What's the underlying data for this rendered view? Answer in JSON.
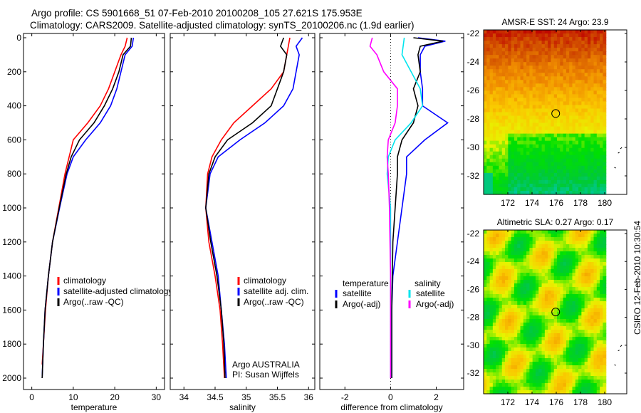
{
  "title_line1": "Argo profile: CS 5901668_51 07-Feb-2010 20100208_105 27.621S 175.953E",
  "title_line2": "Climatology: CARS2009. Satellite-adjusted climatology: synTS_20100206.nc (1.9d earlier)",
  "footer": "CSIRO 12-Feb-2010 10:30:54",
  "chart_data": [
    {
      "type": "line",
      "xlabel": "temperature",
      "ylabel": "",
      "xlim": [
        -2,
        32
      ],
      "ylim": [
        2050,
        0
      ],
      "xticks": [
        "0",
        "10",
        "20",
        "30"
      ],
      "yticks": [
        "0",
        "200",
        "400",
        "600",
        "800",
        "1000",
        "1200",
        "1400",
        "1600",
        "1800",
        "2000"
      ],
      "legend": [
        "climatology",
        "satellite-adjusted climatology",
        "Argo(..raw -QC)"
      ],
      "series": [
        {
          "name": "climatology",
          "color": "#ff0000",
          "depth": [
            0,
            50,
            100,
            200,
            300,
            400,
            500,
            600,
            700,
            800,
            1000,
            1200,
            1400,
            1600,
            1800,
            1920
          ],
          "values": [
            23,
            22.5,
            21.5,
            20,
            18.5,
            16.5,
            13.5,
            10,
            9,
            8,
            6.5,
            5,
            4,
            3.3,
            2.8,
            2.5
          ]
        },
        {
          "name": "satellite-adjusted climatology",
          "color": "#0000ff",
          "depth": [
            0,
            50,
            100,
            200,
            300,
            400,
            500,
            600,
            700,
            800,
            1000,
            1200,
            1400,
            1600,
            1800,
            2000
          ],
          "values": [
            24.5,
            24.2,
            22.5,
            21.5,
            20.5,
            19,
            16.5,
            13,
            10,
            8.5,
            6.7,
            5,
            4,
            3.2,
            2.8,
            2.5
          ]
        },
        {
          "name": "Argo(..raw -QC)",
          "color": "#000000",
          "depth": [
            0,
            50,
            100,
            200,
            300,
            400,
            500,
            600,
            700,
            800,
            1000,
            1200,
            1400,
            1600,
            1800,
            2000
          ],
          "values": [
            24,
            23.8,
            22,
            21,
            19.5,
            17.5,
            15,
            11.5,
            9.5,
            8.3,
            6.6,
            5,
            4,
            3.2,
            2.8,
            2.5
          ]
        }
      ]
    },
    {
      "type": "line",
      "xlabel": "salinity",
      "xlim": [
        33.78,
        36.1
      ],
      "ylim": [
        2050,
        0
      ],
      "xticks": [
        "34",
        "34.5",
        "35",
        "35.5",
        "36"
      ],
      "legend": [
        "climatology",
        "satellite adj. clim.",
        "Argo(..raw -QC)"
      ],
      "annotation": [
        "Argo AUSTRALIA",
        "PI: Susan Wijffels"
      ],
      "series": [
        {
          "name": "climatology",
          "color": "#ff0000",
          "depth": [
            0,
            100,
            200,
            300,
            400,
            500,
            600,
            700,
            800,
            1000,
            1200,
            1400,
            1600,
            1800,
            2000
          ],
          "values": [
            35.7,
            35.65,
            35.6,
            35.4,
            35.1,
            34.8,
            34.6,
            34.45,
            34.38,
            34.35,
            34.4,
            34.5,
            34.58,
            34.62,
            34.65
          ]
        },
        {
          "name": "satellite adj. clim.",
          "color": "#0000ff",
          "depth": [
            0,
            50,
            100,
            200,
            300,
            400,
            500,
            600,
            700,
            800,
            1000,
            1200,
            1400,
            1600,
            1800,
            2000
          ],
          "values": [
            35.9,
            35.8,
            35.85,
            35.8,
            35.75,
            35.6,
            35.3,
            34.9,
            34.55,
            34.42,
            34.35,
            34.45,
            34.55,
            34.6,
            34.65,
            34.68
          ]
        },
        {
          "name": "Argo(..raw -QC)",
          "color": "#000000",
          "depth": [
            0,
            50,
            100,
            200,
            300,
            400,
            500,
            600,
            700,
            800,
            1000,
            1200,
            1400,
            1600,
            1800,
            2000
          ],
          "values": [
            35.6,
            35.55,
            35.65,
            35.6,
            35.5,
            35.4,
            35.1,
            34.7,
            34.5,
            34.4,
            34.35,
            34.43,
            34.53,
            34.6,
            34.64,
            34.66
          ]
        }
      ]
    },
    {
      "type": "line",
      "xlabel": "difference from climatology",
      "xlim": [
        -3.1,
        3.2
      ],
      "ylim": [
        2050,
        0
      ],
      "xticks": [
        "-2",
        "0",
        "2"
      ],
      "legend_headers": [
        "temperature",
        "salinity"
      ],
      "legend": [
        "satellite",
        "Argo(-adj)",
        "satellite",
        "Argo(-adj)"
      ],
      "series": [
        {
          "name": "temperature satellite",
          "color": "#0000ff",
          "depth": [
            0,
            20,
            50,
            100,
            200,
            300,
            400,
            500,
            600,
            700,
            800,
            1000,
            1200,
            1400,
            1600,
            2000
          ],
          "values": [
            1.2,
            2.4,
            1.5,
            1.3,
            1.3,
            1.4,
            1.4,
            2.5,
            1.5,
            0.7,
            0.7,
            0.5,
            0.3,
            0.1,
            0.05,
            0.05
          ]
        },
        {
          "name": "temperature Argo(-adj)",
          "color": "#000000",
          "depth": [
            0,
            20,
            50,
            100,
            200,
            300,
            400,
            500,
            600,
            700,
            800,
            1000,
            1200,
            1600,
            2000
          ],
          "values": [
            1,
            2.3,
            1.3,
            1.2,
            1.3,
            1.0,
            1.2,
            1.0,
            0.5,
            0.3,
            0.3,
            0.2,
            0.1,
            0.05,
            0.05
          ]
        },
        {
          "name": "salinity satellite",
          "color": "#00e5ee",
          "depth": [
            0,
            100,
            200,
            300,
            400,
            500,
            600,
            700,
            800,
            1000,
            1400,
            2000
          ],
          "values": [
            0.6,
            0.5,
            0.9,
            1.3,
            1.4,
            0.9,
            0.2,
            -0.1,
            -0.15,
            0,
            0,
            0
          ]
        },
        {
          "name": "salinity Argo(-adj)",
          "color": "#ff00ff",
          "depth": [
            0,
            50,
            100,
            200,
            300,
            400,
            500,
            600,
            700,
            800,
            1000,
            1400,
            2000
          ],
          "values": [
            -0.8,
            -0.9,
            -0.6,
            -0.3,
            0.3,
            0.3,
            0.2,
            -0.1,
            -0.15,
            -0.1,
            -0.05,
            0,
            0
          ]
        }
      ]
    }
  ],
  "maps": [
    {
      "title": "AMSR-E SST: 24 Argo: 23.9",
      "xticks": [
        "172",
        "174",
        "176",
        "178",
        "180"
      ],
      "yticks": [
        "-22",
        "-24",
        "-26",
        "-28",
        "-30",
        "-32"
      ],
      "marker_lon": 175.953,
      "marker_lat": -27.621,
      "kind": "sst"
    },
    {
      "title": "Altimetric SLA: 0.27 Argo: 0.17",
      "xticks": [
        "172",
        "174",
        "176",
        "178",
        "180"
      ],
      "yticks": [
        "-22",
        "-24",
        "-26",
        "-28",
        "-30",
        "-32"
      ],
      "marker_lon": 175.953,
      "marker_lat": -27.621,
      "kind": "sla"
    }
  ]
}
